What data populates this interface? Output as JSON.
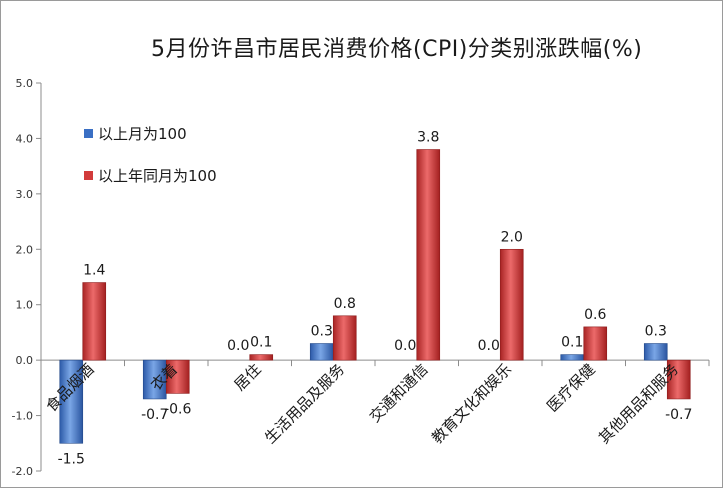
{
  "chart_data": {
    "type": "bar",
    "title": "5月份许昌市居民消费价格(CPI)分类别涨跌幅(%)",
    "categories": [
      "食品烟酒",
      "衣着",
      "居住",
      "生活用品及服务",
      "交通和通信",
      "教育文化和娱乐",
      "医疗保健",
      "其他用品和服务"
    ],
    "series": [
      {
        "name": "以上月为100",
        "values": [
          -1.5,
          -0.7,
          0.0,
          0.3,
          0.0,
          0.0,
          0.1,
          0.3
        ],
        "labels": [
          "-1.5",
          "-0.7",
          "0.0",
          "0.3",
          "0.0",
          "0.0",
          "0.1",
          "0.3"
        ],
        "color": "#3a6fc4"
      },
      {
        "name": "以上年同月为100",
        "values": [
          1.4,
          -0.6,
          0.1,
          0.8,
          3.8,
          2.0,
          0.6,
          -0.7
        ],
        "labels": [
          "1.4",
          "-0.6",
          "0.1",
          "0.8",
          "3.8",
          "2.0",
          "0.6",
          "-0.7"
        ],
        "color": "#d23b3b"
      }
    ],
    "yticks": [
      "-2.0",
      "-1.0",
      "0.0",
      "1.0",
      "2.0",
      "3.0",
      "4.0",
      "5.0"
    ],
    "ylim": [
      -2,
      5
    ],
    "legend_position": "top-left",
    "grid": false
  }
}
